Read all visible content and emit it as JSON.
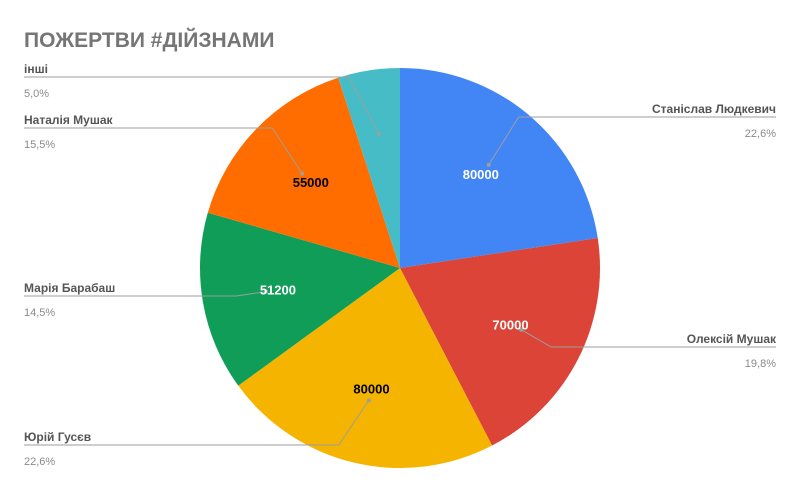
{
  "chart_data": {
    "type": "pie",
    "title": "ПОЖЕРТВИ #ДІЙЗНАМИ",
    "legend": "labels",
    "slices": [
      {
        "label": "Станіслав Людкевич",
        "value": 80000,
        "value_label": "80000",
        "percent": "22,6%",
        "color": "#4285f4",
        "value_color": "#ffffff"
      },
      {
        "label": "Олексій Мушак",
        "value": 70000,
        "value_label": "70000",
        "percent": "19,8%",
        "color": "#db4437",
        "value_color": "#ffffff"
      },
      {
        "label": "Юрій Гусєв",
        "value": 80000,
        "value_label": "80000",
        "percent": "22,6%",
        "color": "#f4b400",
        "value_color": "#000000"
      },
      {
        "label": "Марія Барабаш",
        "value": 51200,
        "value_label": "51200",
        "percent": "14,5%",
        "color": "#0f9d58",
        "value_color": "#ffffff"
      },
      {
        "label": "Наталія Мушак",
        "value": 55000,
        "value_label": "55000",
        "percent": "15,5%",
        "color": "#ff6d00",
        "value_color": "#000000"
      },
      {
        "label": "інші",
        "value": 17700,
        "value_label": "",
        "percent": "5,0%",
        "color": "#46bdc6",
        "value_color": "#ffffff"
      }
    ]
  }
}
